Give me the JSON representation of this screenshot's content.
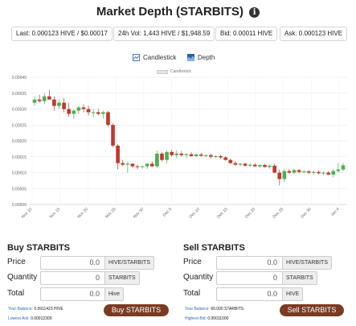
{
  "header": {
    "title": "Market Depth (STARBITS)",
    "info_icon": "info-circle-icon"
  },
  "stats": {
    "last": "Last: 0.000123 HIVE / $0.00017",
    "vol": "24h Vol: 1,443 HIVE / $1,948.59",
    "bid": "Bid: 0.00011 HIVE",
    "ask": "Ask: 0.000123 HIVE"
  },
  "toggles": {
    "candlestick": "Candlestick",
    "depth": "Depth"
  },
  "legend": {
    "label": "Candlestick"
  },
  "chart_data": {
    "type": "candlestick",
    "title": "",
    "xlabel": "",
    "ylabel": "",
    "ylim": [
      0,
      0.0004
    ],
    "y_ticks": [
      "0.00000",
      "0.00005",
      "0.00010",
      "0.00015",
      "0.00020",
      "0.00025",
      "0.00030",
      "0.00035",
      "0.00040"
    ],
    "x_ticks": [
      "Nov 10",
      "Nov 15",
      "Nov 20",
      "Nov 25",
      "Nov 30",
      "Dec 5",
      "Dec 10",
      "Dec 15",
      "Dec 20",
      "Dec 25",
      "Dec 30",
      "Jan 4"
    ],
    "colors": {
      "up": "#4caf50",
      "down": "#c0392b",
      "grid": "#e6e6e6"
    },
    "candles": [
      {
        "o": 0.00032,
        "h": 0.00034,
        "l": 0.00031,
        "c": 0.00033
      },
      {
        "o": 0.00033,
        "h": 0.000345,
        "l": 0.00032,
        "c": 0.000325
      },
      {
        "o": 0.000325,
        "h": 0.00035,
        "l": 0.000315,
        "c": 0.00034
      },
      {
        "o": 0.00034,
        "h": 0.00036,
        "l": 0.00033,
        "c": 0.00033
      },
      {
        "o": 0.00033,
        "h": 0.00034,
        "l": 0.000295,
        "c": 0.00031
      },
      {
        "o": 0.00031,
        "h": 0.00033,
        "l": 0.0003,
        "c": 0.00032
      },
      {
        "o": 0.00032,
        "h": 0.000335,
        "l": 0.00029,
        "c": 0.0003
      },
      {
        "o": 0.0003,
        "h": 0.00032,
        "l": 0.000275,
        "c": 0.000285
      },
      {
        "o": 0.000285,
        "h": 0.0003,
        "l": 0.00027,
        "c": 0.000295
      },
      {
        "o": 0.000295,
        "h": 0.00031,
        "l": 0.000285,
        "c": 0.000305
      },
      {
        "o": 0.000305,
        "h": 0.000315,
        "l": 0.00029,
        "c": 0.0003
      },
      {
        "o": 0.0003,
        "h": 0.00031,
        "l": 0.00028,
        "c": 0.00029
      },
      {
        "o": 0.00029,
        "h": 0.0003,
        "l": 0.000275,
        "c": 0.00029
      },
      {
        "o": 0.00029,
        "h": 0.0003,
        "l": 0.00028,
        "c": 0.000285
      },
      {
        "o": 0.000285,
        "h": 0.000295,
        "l": 0.00027,
        "c": 0.00029
      },
      {
        "o": 0.00029,
        "h": 0.000295,
        "l": 0.000245,
        "c": 0.00025
      },
      {
        "o": 0.00025,
        "h": 0.000255,
        "l": 0.00018,
        "c": 0.000185
      },
      {
        "o": 0.000185,
        "h": 0.00019,
        "l": 0.00011,
        "c": 0.00013
      },
      {
        "o": 0.00013,
        "h": 0.00014,
        "l": 0.00012,
        "c": 0.000125
      },
      {
        "o": 0.000125,
        "h": 0.000135,
        "l": 0.0001,
        "c": 0.000128
      },
      {
        "o": 0.000128,
        "h": 0.00013,
        "l": 0.000115,
        "c": 0.00012
      },
      {
        "o": 0.00012,
        "h": 0.000125,
        "l": 0.00011,
        "c": 0.000118
      },
      {
        "o": 0.000118,
        "h": 0.000122,
        "l": 0.000112,
        "c": 0.00012
      },
      {
        "o": 0.00012,
        "h": 0.00013,
        "l": 0.000112,
        "c": 0.000128
      },
      {
        "o": 0.000128,
        "h": 0.000135,
        "l": 0.000118,
        "c": 0.00012
      },
      {
        "o": 0.00012,
        "h": 0.00017,
        "l": 0.000115,
        "c": 0.00016
      },
      {
        "o": 0.00016,
        "h": 0.000165,
        "l": 0.000135,
        "c": 0.00014
      },
      {
        "o": 0.00014,
        "h": 0.00017,
        "l": 0.00013,
        "c": 0.000165
      },
      {
        "o": 0.000165,
        "h": 0.000172,
        "l": 0.00015,
        "c": 0.000155
      },
      {
        "o": 0.000155,
        "h": 0.00017,
        "l": 0.000145,
        "c": 0.00016
      },
      {
        "o": 0.00016,
        "h": 0.000168,
        "l": 0.00015,
        "c": 0.000155
      },
      {
        "o": 0.000155,
        "h": 0.000162,
        "l": 0.000145,
        "c": 0.000158
      },
      {
        "o": 0.000158,
        "h": 0.000165,
        "l": 0.00015,
        "c": 0.000152
      },
      {
        "o": 0.000152,
        "h": 0.00016,
        "l": 0.000148,
        "c": 0.000157
      },
      {
        "o": 0.000157,
        "h": 0.000162,
        "l": 0.00015,
        "c": 0.000153
      },
      {
        "o": 0.000153,
        "h": 0.000158,
        "l": 0.000148,
        "c": 0.000155
      },
      {
        "o": 0.000155,
        "h": 0.00016,
        "l": 0.000145,
        "c": 0.00015
      },
      {
        "o": 0.00015,
        "h": 0.000155,
        "l": 0.000145,
        "c": 0.000152
      },
      {
        "o": 0.000152,
        "h": 0.000156,
        "l": 0.000144,
        "c": 0.000148
      },
      {
        "o": 0.000148,
        "h": 0.000152,
        "l": 0.000138,
        "c": 0.00014
      },
      {
        "o": 0.00014,
        "h": 0.000145,
        "l": 0.000128,
        "c": 0.00013
      },
      {
        "o": 0.00013,
        "h": 0.000135,
        "l": 0.000122,
        "c": 0.000125
      },
      {
        "o": 0.000125,
        "h": 0.00013,
        "l": 0.00012,
        "c": 0.000128
      },
      {
        "o": 0.000128,
        "h": 0.000132,
        "l": 0.00012,
        "c": 0.000122
      },
      {
        "o": 0.000122,
        "h": 0.000128,
        "l": 0.000118,
        "c": 0.000125
      },
      {
        "o": 0.000125,
        "h": 0.00013,
        "l": 0.000118,
        "c": 0.00012
      },
      {
        "o": 0.00012,
        "h": 0.000126,
        "l": 0.000115,
        "c": 0.000124
      },
      {
        "o": 0.000124,
        "h": 0.000128,
        "l": 0.000116,
        "c": 0.000118
      },
      {
        "o": 0.000118,
        "h": 0.000125,
        "l": 0.000112,
        "c": 0.000122
      },
      {
        "o": 0.000122,
        "h": 0.000128,
        "l": 9.8e-05,
        "c": 0.0001
      },
      {
        "o": 0.0001,
        "h": 0.00011,
        "l": 6e-05,
        "c": 8e-05
      },
      {
        "o": 8e-05,
        "h": 0.000112,
        "l": 7e-05,
        "c": 0.000105
      },
      {
        "o": 0.000105,
        "h": 0.000112,
        "l": 9.6e-05,
        "c": 0.0001
      },
      {
        "o": 0.0001,
        "h": 0.000112,
        "l": 9.5e-05,
        "c": 0.000108
      },
      {
        "o": 0.000108,
        "h": 0.000112,
        "l": 9.8e-05,
        "c": 0.000102
      },
      {
        "o": 0.000102,
        "h": 0.000108,
        "l": 9.8e-05,
        "c": 0.000104
      },
      {
        "o": 0.000104,
        "h": 0.000108,
        "l": 9.6e-05,
        "c": 0.0001
      },
      {
        "o": 0.0001,
        "h": 0.000106,
        "l": 9.4e-05,
        "c": 0.000102
      },
      {
        "o": 0.000102,
        "h": 0.000108,
        "l": 9.5e-05,
        "c": 9.8e-05
      },
      {
        "o": 9.8e-05,
        "h": 0.000104,
        "l": 9.2e-05,
        "c": 0.0001
      },
      {
        "o": 0.0001,
        "h": 0.000105,
        "l": 9.2e-05,
        "c": 9.4e-05
      },
      {
        "o": 9.4e-05,
        "h": 0.000112,
        "l": 8.5e-05,
        "c": 0.000105
      },
      {
        "o": 0.000105,
        "h": 0.00013,
        "l": 0.0001,
        "c": 0.00011
      },
      {
        "o": 0.00011,
        "h": 0.00013,
        "l": 0.000105,
        "c": 0.000123
      }
    ]
  },
  "buy": {
    "title": "Buy STARBITS",
    "price_label": "Price",
    "price_value": "0.0",
    "price_unit": "HIVE/STARBITS",
    "qty_label": "Quantity",
    "qty_value": "0",
    "qty_unit": "STARBITS",
    "total_label": "Total",
    "total_value": "0.0",
    "total_unit": "Hive",
    "balance_key": "Your Balance:",
    "balance_val": "0.0911423 HIVE",
    "lowest_key": "Lowest Ask:",
    "lowest_val": "0.00012300",
    "button": "Buy STARBITS"
  },
  "sell": {
    "title": "Sell STARBITS",
    "price_label": "Price",
    "price_value": "0.0",
    "price_unit": "HIVE/STARBITS",
    "qty_label": "Quantity",
    "qty_value": "0",
    "qty_unit": "STARBITS",
    "total_label": "Total",
    "total_value": "0.0",
    "total_unit": "HIVE",
    "balance_key": "Your Balance:",
    "balance_val": "60.000 STARBITS",
    "highest_key": "Highest Bid:",
    "highest_val": "0.00011000",
    "button": "Sell STARBITS"
  }
}
